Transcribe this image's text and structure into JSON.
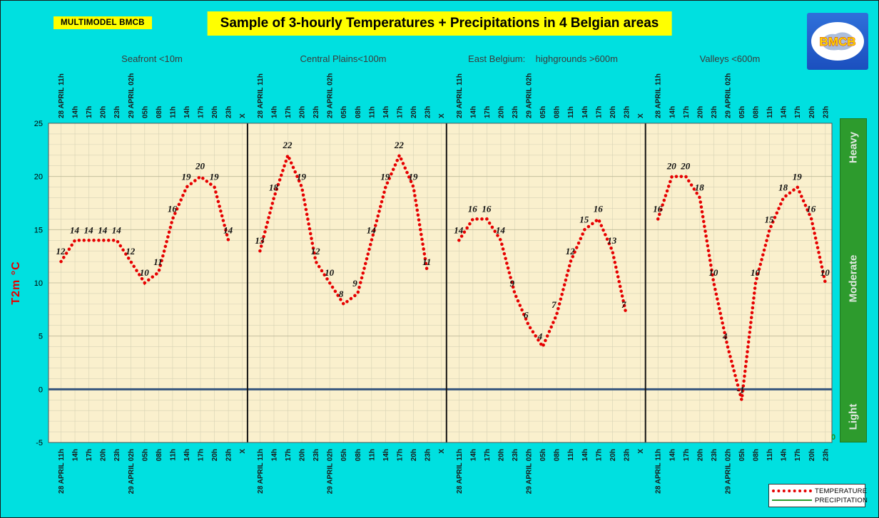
{
  "header": {
    "model_label": "MULTIMODEL BMCB",
    "title": "Sample of 3-hourly Temperatures + Precipitations in 4 Belgian areas",
    "logo_text": "BMCB"
  },
  "y_axis": {
    "label": "T2m °C",
    "ticks": [
      25,
      20,
      15,
      10,
      5,
      0,
      -5
    ]
  },
  "precip_scale": {
    "labels": [
      "Heavy",
      "Moderate",
      "Light"
    ],
    "zero_label": "0"
  },
  "legend": {
    "items": [
      {
        "label": "TEMPERATURE",
        "style": "dotted",
        "color": "#e60000"
      },
      {
        "label": "PRECIPITATION",
        "style": "solid",
        "color": "#2d9b2d"
      }
    ]
  },
  "colors": {
    "background": "#00e0e0",
    "plot_background": "#faf0cd",
    "grid_minor": "#d6d2b4",
    "grid_major": "#bcb897",
    "zero_line": "#35557d",
    "panel_separator": "#111111",
    "temperature": "#e60000",
    "precipitation": "#2d9b2d",
    "scale_bar": "#2d9b2d",
    "accent": "#ffff00"
  },
  "chart_data": {
    "type": "line",
    "title": "Sample of 3-hourly Temperatures + Precipitations in 4 Belgian areas",
    "ylabel": "T2m °C",
    "ylim": [
      -5,
      25
    ],
    "grid": true,
    "x_labels": [
      "28 APRIL 11h",
      "14h",
      "17h",
      "20h",
      "23h",
      "29 APRIL 02h",
      "05h",
      "08h",
      "11h",
      "14h",
      "17h",
      "20h",
      "23h",
      "X"
    ],
    "panels": [
      {
        "title": "Seafront <10m",
        "values": [
          12,
          14,
          14,
          14,
          14,
          12,
          10,
          11,
          16,
          19,
          20,
          19,
          14
        ]
      },
      {
        "title": "Central Plains<100m",
        "values": [
          13,
          18,
          22,
          19,
          12,
          10,
          8,
          9,
          14,
          19,
          22,
          19,
          11
        ]
      },
      {
        "title": "East Belgium:    highgrounds >600m",
        "values": [
          14,
          16,
          16,
          14,
          9,
          6,
          4,
          7,
          12,
          15,
          16,
          13,
          7
        ]
      },
      {
        "title": "Valleys <600m",
        "values": [
          16,
          20,
          20,
          18,
          10,
          4,
          -1,
          10,
          15,
          18,
          19,
          16,
          10
        ]
      }
    ]
  }
}
